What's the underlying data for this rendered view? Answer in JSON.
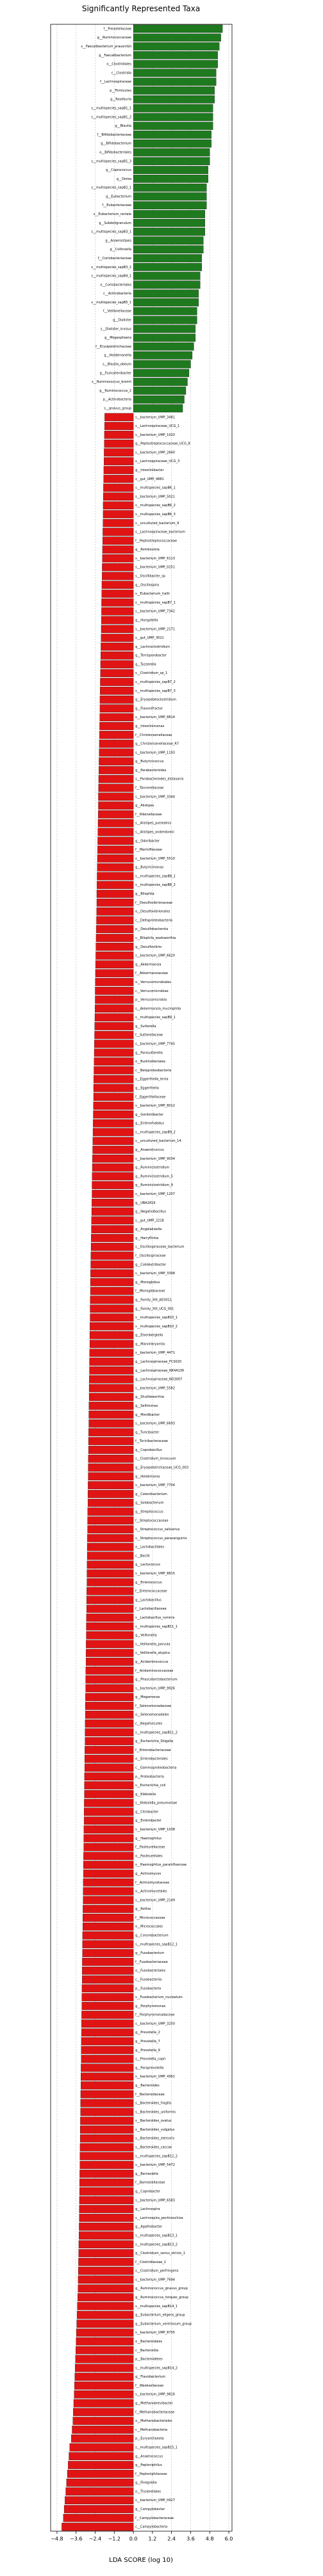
{
  "chart_data": {
    "type": "lda_bar",
    "title": "Significantly Represented Taxa",
    "x_label": "LDA SCORE (log 10)",
    "xlim": [
      -5.2,
      6.2
    ],
    "xticks": [
      {
        "value": -4.8,
        "label": "−4.8"
      },
      {
        "value": -3.6,
        "label": "−3.6"
      },
      {
        "value": -2.4,
        "label": "−2.4"
      },
      {
        "value": -1.2,
        "label": "−1.2"
      },
      {
        "value": 0,
        "label": "0.0"
      },
      {
        "value": 1.2,
        "label": "1.2"
      },
      {
        "value": 2.4,
        "label": "2.4"
      },
      {
        "value": 3.6,
        "label": "3.6"
      },
      {
        "value": 4.8,
        "label": "4.8"
      },
      {
        "value": 6,
        "label": "6.0"
      }
    ],
    "grid": true,
    "groups": [
      {
        "color": "#1f7a1f",
        "categories": [
          "f__Prevotellaceae",
          "g__Ruminococcaceae",
          "s__Faecalibacterium_prausnitzii",
          "g__Faecalibacterium",
          "o__Clostridiales",
          "c__Clostridia",
          "f__Lachnospiraceae",
          "p__Firmicutes",
          "g__Roseburia",
          "s__multispecies_sapB1_1",
          "s__multispecies_sapB1_2",
          "g__Blautia",
          "f__Bifidobacteriaceae",
          "g__Bifidobacterium",
          "o__Bifidobacteriales",
          "s__multispecies_sapB1_3",
          "g__Coprococcus",
          "g__Dorea",
          "s__multispecies_sapB2_1",
          "g__Eubacterium",
          "f__Eubacteriaceae",
          "s__Eubacterium_rectale",
          "g__Subdoligranulum",
          "s__multispecies_sapB3_1",
          "g__Anaerostipes",
          "g__Collinsella",
          "f__Coriobacteriaceae",
          "s__multispecies_sapB3_2",
          "s__multispecies_sapB4_1",
          "o__Coriobacteriales",
          "c__Actinobacteria",
          "s__multispecies_sapB5_1",
          "f__Veillonellaceae",
          "g__Dialister",
          "s__Dialister_invisus",
          "g__Megasphaera",
          "f__Erysipelotrichaceae",
          "g__Holdemanella",
          "s__Blautia_obeum",
          "g__Fusicatenibacter",
          "s__Ruminococcus_bromii",
          "g__Ruminococcus_2",
          "p__Actinobacteria",
          "s__gnavus_group"
        ],
        "values": [
          5.6,
          5.5,
          5.4,
          5.3,
          5.3,
          5.2,
          5.2,
          5.1,
          5.1,
          5.0,
          5.0,
          5.0,
          4.9,
          4.9,
          4.8,
          4.8,
          4.7,
          4.7,
          4.6,
          4.6,
          4.6,
          4.5,
          4.5,
          4.5,
          4.4,
          4.4,
          4.3,
          4.3,
          4.2,
          4.2,
          4.1,
          4.1,
          4.0,
          4.0,
          3.9,
          3.9,
          3.8,
          3.7,
          3.6,
          3.5,
          3.4,
          3.3,
          3.2,
          3.1
        ]
      },
      {
        "color": "#e01414",
        "categories": [
          "s__bacterium_UMP_3481",
          "s__Lachnospiraceae_UCG_1",
          "s__bacterium_UMP_1020",
          "g__Peptostreptococcaceae_UCG_8",
          "s__bacterium_UMP_2840",
          "s__Lachnospiraceae_UCG_3",
          "g__Intestinibacter",
          "s__gut_UMP_4881",
          "s__multispecies_sapB6_1",
          "s__bacterium_UMP_5021",
          "s__multispecies_sapB6_2",
          "s__multispecies_sapB6_3",
          "s__uncultured_bacterium_9",
          "s__Lachnospiraceae_bacterium",
          "f__Peptostreptococcaceae",
          "g__Romboutsia",
          "s__bacterium_UMP_6113",
          "s__bacterium_UMP_0251",
          "s__Oscillibacter_sp",
          "g__Oscillospira",
          "s__Eubacterium_hallii",
          "s__multispecies_sapB7_1",
          "s__bacterium_UMP_7342",
          "g__Hungatella",
          "s__bacterium_UMP_2171",
          "s__gut_UMP_3021",
          "g__Lachnoclostridium",
          "g__Terrisporobacter",
          "g__Tyzzerella",
          "s__Clostridium_sp_1",
          "s__multispecies_sapB7_2",
          "s__multispecies_sapB7_3",
          "g__Erysipelatoclostridium",
          "g__Flavonifractor",
          "s__bacterium_UMP_8814",
          "g__Intestinimonas",
          "f__Christensenellaceae",
          "g__Christensenellaceae_R7",
          "s__bacterium_UMP_1193",
          "g__Butyricicoccus",
          "g__Parabacteroides",
          "s__Parabacteroides_distasonis",
          "f__Tannerellaceae",
          "s__bacterium_UMP_3344",
          "g__Alistipes",
          "f__Rikenellaceae",
          "s__Alistipes_putredinis",
          "s__Alistipes_onderdonkii",
          "g__Odoribacter",
          "f__Marinifilaceae",
          "s__bacterium_UMP_5510",
          "g__Butyricimonas",
          "s__multispecies_sapB8_1",
          "s__multispecies_sapB8_2",
          "g__Bilophila",
          "f__Desulfovibrionaceae",
          "o__Desulfovibrionales",
          "c__Deltaproteobacteria",
          "p__Desulfobacterota",
          "s__Bilophila_wadsworthia",
          "g__Desulfovibrio",
          "s__bacterium_UMP_6620",
          "g__Akkermansia",
          "f__Akkermansiaceae",
          "o__Verrucomicrobiales",
          "c__Verrucomicrobiae",
          "p__Verrucomicrobia",
          "s__Akkermansia_muciniphila",
          "s__multispecies_sapB9_1",
          "g__Sutterella",
          "f__Sutterellaceae",
          "s__bacterium_UMP_7745",
          "g__Parasutterella",
          "o__Burkholderiales",
          "c__Betaproteobacteria",
          "s__Eggerthella_lenta",
          "g__Eggerthella",
          "f__Eggerthellaceae",
          "s__bacterium_UMP_8012",
          "g__Gordonibacter",
          "g__Enterorhabdus",
          "s__multispecies_sapB9_2",
          "s__uncultured_bacterium_14",
          "g__Anaerotruncus",
          "s__bacterium_UMP_9034",
          "g__Ruminiclostridium",
          "g__Ruminiclostridium_5",
          "g__Ruminiclostridium_9",
          "s__bacterium_UMP_1207",
          "g__UBA1819",
          "g__Negativibacillus",
          "s__gut_UMP_2218",
          "g__Angelakisella",
          "g__Harryflintia",
          "s__Oscillospiraceae_bacterium",
          "f__Oscillospiraceae",
          "g__Colidextribacter",
          "s__bacterium_UMP_3398",
          "g__Monoglobus",
          "f__Monoglobaceae",
          "g__Family_XIII_AD3011",
          "g__Family_XIII_UCG_001",
          "s__multispecies_sapB10_1",
          "s__multispecies_sapB10_2",
          "g__Eisenbergiella",
          "g__Marvinbryantia",
          "s__bacterium_UMP_4471",
          "g__Lachnospiraceae_FCS020",
          "g__Lachnospiraceae_NK4A136",
          "g__Lachnospiraceae_ND3007",
          "s__bacterium_UMP_5582",
          "g__Shuttleworthia",
          "g__Sellimonas",
          "g__Merdibacter",
          "s__bacterium_UMP_6693",
          "g__Turicibacter",
          "f__Turicibacteraceae",
          "g__Coprobacillus",
          "s__Clostridium_innocuum",
          "g__Erysipelotrichaceae_UCG_003",
          "g__Holdemania",
          "s__bacterium_UMP_7704",
          "g__Catenibacterium",
          "g__Solobacterium",
          "g__Streptococcus",
          "f__Streptococcaceae",
          "s__Streptococcus_salivarius",
          "s__Streptococcus_parasanguinis",
          "o__Lactobacillales",
          "c__Bacilli",
          "g__Lactococcus",
          "s__bacterium_UMP_8815",
          "g__Enterococcus",
          "f__Enterococcaceae",
          "g__Lactobacillus",
          "f__Lactobacillaceae",
          "s__Lactobacillus_ruminis",
          "s__multispecies_sapB11_1",
          "g__Veillonella",
          "s__Veillonella_parvula",
          "s__Veillonella_atypica",
          "g__Acidaminococcus",
          "f__Acidaminococcaceae",
          "g__Phascolarctobacterium",
          "s__bacterium_UMP_9926",
          "g__Megamonas",
          "f__Selenomonadaceae",
          "o__Selenomonadales",
          "c__Negativicutes",
          "s__multispecies_sapB11_2",
          "g__Escherichia_Shigella",
          "f__Enterobacteriaceae",
          "o__Enterobacterales",
          "c__Gammaproteobacteria",
          "p__Proteobacteria",
          "s__Escherichia_coli",
          "g__Klebsiella",
          "s__Klebsiella_pneumoniae",
          "g__Citrobacter",
          "g__Enterobacter",
          "s__bacterium_UMP_1038",
          "g__Haemophilus",
          "f__Pasteurellaceae",
          "o__Pasteurellales",
          "s__Haemophilus_parainfluenzae",
          "g__Actinomyces",
          "f__Actinomycetaceae",
          "o__Actinomycetales",
          "s__bacterium_UMP_2149",
          "g__Rothia",
          "f__Micrococcaceae",
          "o__Micrococcales",
          "g__Corynebacterium",
          "s__multispecies_sapB12_1",
          "g__Fusobacterium",
          "f__Fusobacteriaceae",
          "o__Fusobacteriales",
          "c__Fusobacteriia",
          "p__Fusobacteria",
          "s__Fusobacterium_nucleatum",
          "g__Porphyromonas",
          "f__Porphyromonadaceae",
          "s__bacterium_UMP_3250",
          "g__Prevotella_2",
          "g__Prevotella_7",
          "g__Prevotella_9",
          "s__Prevotella_copri",
          "g__Paraprevotella",
          "s__bacterium_UMP_4361",
          "g__Bacteroides",
          "f__Bacteroidaceae",
          "s__Bacteroides_fragilis",
          "s__Bacteroides_uniformis",
          "s__Bacteroides_ovatus",
          "s__Bacteroides_vulgatus",
          "s__Bacteroides_stercoris",
          "s__Bacteroides_caccae",
          "s__multispecies_sapB12_2",
          "s__bacterium_UMP_5472",
          "g__Barnesiella",
          "f__Barnesiellaceae",
          "g__Coprobacter",
          "s__bacterium_UMP_6583",
          "g__Lachnospira",
          "s__Lachnospira_pectinoschiza",
          "g__Agathobacter",
          "s__multispecies_sapB13_1",
          "s__multispecies_sapB13_2",
          "g__Clostridium_sensu_stricto_1",
          "f__Clostridiaceae_1",
          "s__Clostridium_perfringens",
          "s__bacterium_UMP_7694",
          "g__Ruminococcus_gnavus_group",
          "g__Ruminococcus_torques_group",
          "s__multispecies_sapB14_1",
          "g__Eubacterium_eligens_group",
          "g__Eubacterium_ventriosum_group",
          "s__bacterium_UMP_8705",
          "o__Bacteroidales",
          "c__Bacteroidia",
          "p__Bacteroidetes",
          "s__multispecies_sapB14_2",
          "g__Flavobacterium",
          "f__Weeksellaceae",
          "s__bacterium_UMP_9816",
          "g__Methanobrevibacter",
          "f__Methanobacteriaceae",
          "o__Methanobacteriales",
          "c__Methanobacteria",
          "p__Euryarchaeota",
          "s__multispecies_sapB15_1",
          "g__Anaerococcus",
          "g__Peptoniphilus",
          "f__Peptoniphilaceae",
          "g__Finegoldia",
          "o__Tissierellales",
          "s__bacterium_UMP_0927",
          "g__Campylobacter",
          "f__Campylobacteraceae",
          "c__Campylobacteria"
        ],
        "values": [
          -1.8,
          -1.81,
          -1.82,
          -1.83,
          -1.84,
          -1.85,
          -1.86,
          -1.87,
          -1.88,
          -1.89,
          -1.9,
          -1.9,
          -1.91,
          -1.92,
          -1.93,
          -1.94,
          -1.95,
          -1.96,
          -1.97,
          -1.98,
          -1.99,
          -2.0,
          -2.0,
          -2.01,
          -2.02,
          -2.03,
          -2.04,
          -2.05,
          -2.06,
          -2.07,
          -2.08,
          -2.09,
          -2.1,
          -2.1,
          -2.11,
          -2.12,
          -2.13,
          -2.14,
          -2.15,
          -2.16,
          -2.17,
          -2.18,
          -2.19,
          -2.2,
          -2.2,
          -2.21,
          -2.22,
          -2.23,
          -2.24,
          -2.25,
          -2.26,
          -2.27,
          -2.28,
          -2.29,
          -2.3,
          -2.3,
          -2.31,
          -2.32,
          -2.33,
          -2.34,
          -2.35,
          -2.36,
          -2.37,
          -2.38,
          -2.39,
          -2.4,
          -2.4,
          -2.41,
          -2.42,
          -2.43,
          -2.44,
          -2.45,
          -2.46,
          -2.47,
          -2.48,
          -2.49,
          -2.5,
          -2.5,
          -2.51,
          -2.52,
          -2.53,
          -2.54,
          -2.55,
          -2.56,
          -2.57,
          -2.58,
          -2.59,
          -2.6,
          -2.6,
          -2.61,
          -2.62,
          -2.63,
          -2.64,
          -2.65,
          -2.66,
          -2.67,
          -2.68,
          -2.69,
          -2.7,
          -2.7,
          -2.71,
          -2.72,
          -2.72,
          -2.73,
          -2.74,
          -2.74,
          -2.75,
          -2.76,
          -2.76,
          -2.77,
          -2.78,
          -2.78,
          -2.79,
          -2.8,
          -2.8,
          -2.81,
          -2.82,
          -2.82,
          -2.83,
          -2.84,
          -2.84,
          -2.85,
          -2.86,
          -2.86,
          -2.87,
          -2.88,
          -2.88,
          -2.89,
          -2.9,
          -2.9,
          -2.91,
          -2.92,
          -2.92,
          -2.93,
          -2.94,
          -2.94,
          -2.95,
          -2.96,
          -2.96,
          -2.97,
          -2.98,
          -2.98,
          -2.99,
          -3.0,
          -3.0,
          -3.01,
          -3.02,
          -3.02,
          -3.03,
          -3.04,
          -3.04,
          -3.05,
          -3.06,
          -3.06,
          -3.07,
          -3.08,
          -3.08,
          -3.09,
          -3.1,
          -3.1,
          -3.11,
          -3.12,
          -3.12,
          -3.13,
          -3.14,
          -3.14,
          -3.15,
          -3.16,
          -3.16,
          -3.17,
          -3.18,
          -3.18,
          -3.19,
          -3.2,
          -3.2,
          -3.21,
          -3.22,
          -3.22,
          -3.23,
          -3.24,
          -3.24,
          -3.25,
          -3.26,
          -3.26,
          -3.27,
          -3.28,
          -3.28,
          -3.29,
          -3.3,
          -3.3,
          -3.31,
          -3.32,
          -3.32,
          -3.33,
          -3.34,
          -3.34,
          -3.35,
          -3.36,
          -3.36,
          -3.37,
          -3.38,
          -3.38,
          -3.39,
          -3.4,
          -3.4,
          -3.41,
          -3.42,
          -3.43,
          -3.44,
          -3.45,
          -3.46,
          -3.47,
          -3.48,
          -3.5,
          -3.52,
          -3.54,
          -3.56,
          -3.58,
          -3.6,
          -3.62,
          -3.64,
          -3.66,
          -3.68,
          -3.7,
          -3.72,
          -3.75,
          -3.78,
          -3.8,
          -3.85,
          -3.9,
          -4.0,
          -4.05,
          -4.1,
          -4.15,
          -4.2,
          -4.25,
          -4.3,
          -4.35,
          -4.4,
          -4.5
        ]
      }
    ]
  }
}
